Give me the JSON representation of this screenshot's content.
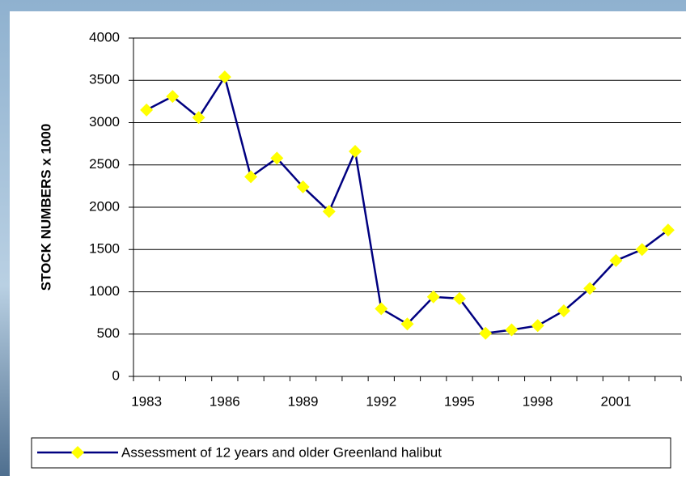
{
  "chart_data": {
    "type": "line",
    "y_label": "STOCK NUMBERS  x 1000",
    "categories": [
      "1983",
      null,
      null,
      "1986",
      null,
      null,
      "1989",
      null,
      null,
      "1992",
      null,
      null,
      "1995",
      null,
      null,
      "1998",
      null,
      null,
      "2001",
      null,
      null
    ],
    "series": [
      {
        "name": "Assessment of 12 years and older Greenland halibut",
        "color": "#000080",
        "marker_color": "#ffff00",
        "values": [
          3150,
          3310,
          3060,
          3540,
          2360,
          2580,
          2240,
          1950,
          2660,
          800,
          620,
          940,
          920,
          510,
          550,
          600,
          775,
          1040,
          1370,
          1500,
          1730
        ]
      }
    ],
    "ylim": [
      0,
      4000
    ],
    "yticks": [
      0,
      500,
      1000,
      1500,
      2000,
      2500,
      3000,
      3500,
      4000
    ],
    "grid": true,
    "legend": "bottom"
  }
}
